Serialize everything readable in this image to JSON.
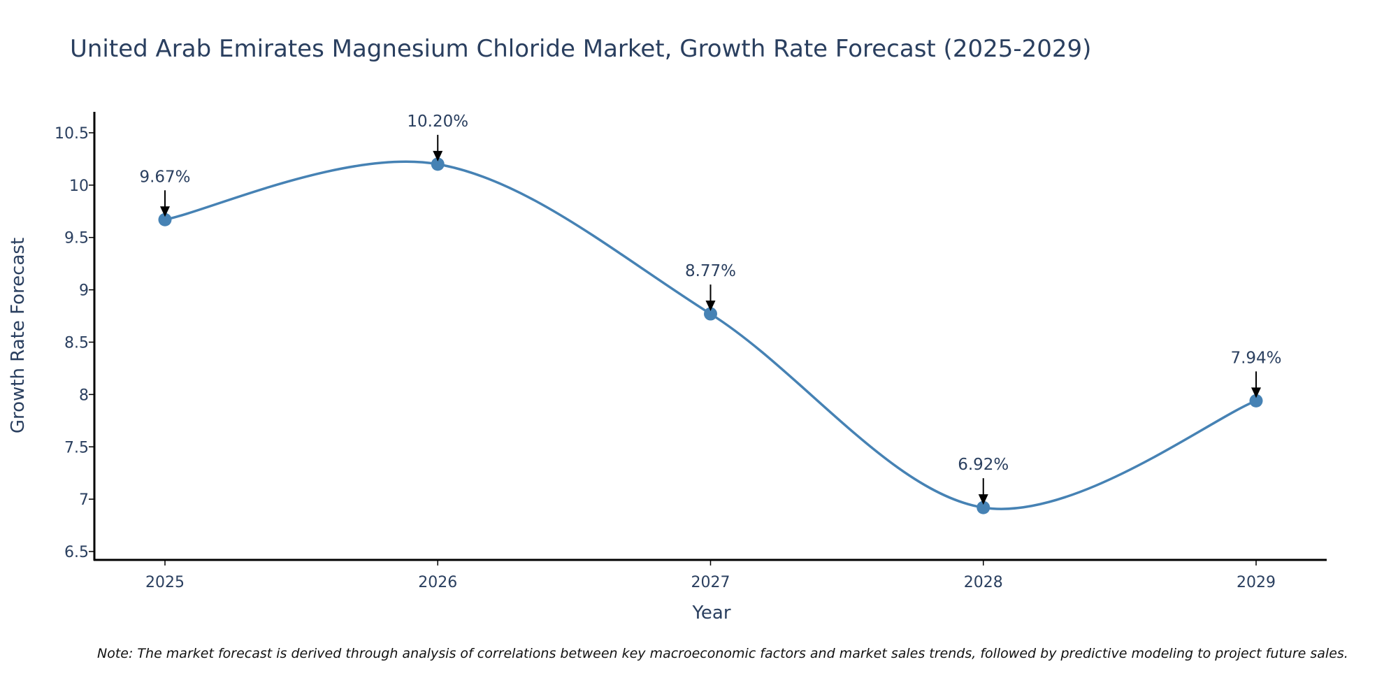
{
  "chart_data": {
    "type": "line",
    "title": "United Arab Emirates Magnesium Chloride Market, Growth Rate Forecast (2025-2029)",
    "xlabel": "Year",
    "ylabel": "Growth Rate Forecast",
    "categories": [
      "2025",
      "2026",
      "2027",
      "2028",
      "2029"
    ],
    "series": [
      {
        "name": "Growth Rate Forecast",
        "values": [
          9.67,
          10.2,
          8.77,
          6.92,
          7.94
        ],
        "labels": [
          "9.67%",
          "10.20%",
          "8.77%",
          "6.92%",
          "7.94%"
        ]
      }
    ],
    "ylim": [
      6.42,
      10.7
    ],
    "yticks": [
      6.5,
      7,
      7.5,
      8,
      8.5,
      9,
      9.5,
      10,
      10.5
    ],
    "ytick_labels": [
      "6.5",
      "7",
      "7.5",
      "8",
      "8.5",
      "9",
      "9.5",
      "10",
      "10.5"
    ],
    "line_shape": "spline",
    "grid": false,
    "line_color": "#4682b4",
    "marker_color": "#4682b4",
    "arrow_color": "#000000",
    "text_color": "#2a3f5f"
  },
  "note": "Note: The market forecast is derived through analysis of correlations between key macroeconomic factors and market sales trends, followed by predictive modeling to project future sales."
}
